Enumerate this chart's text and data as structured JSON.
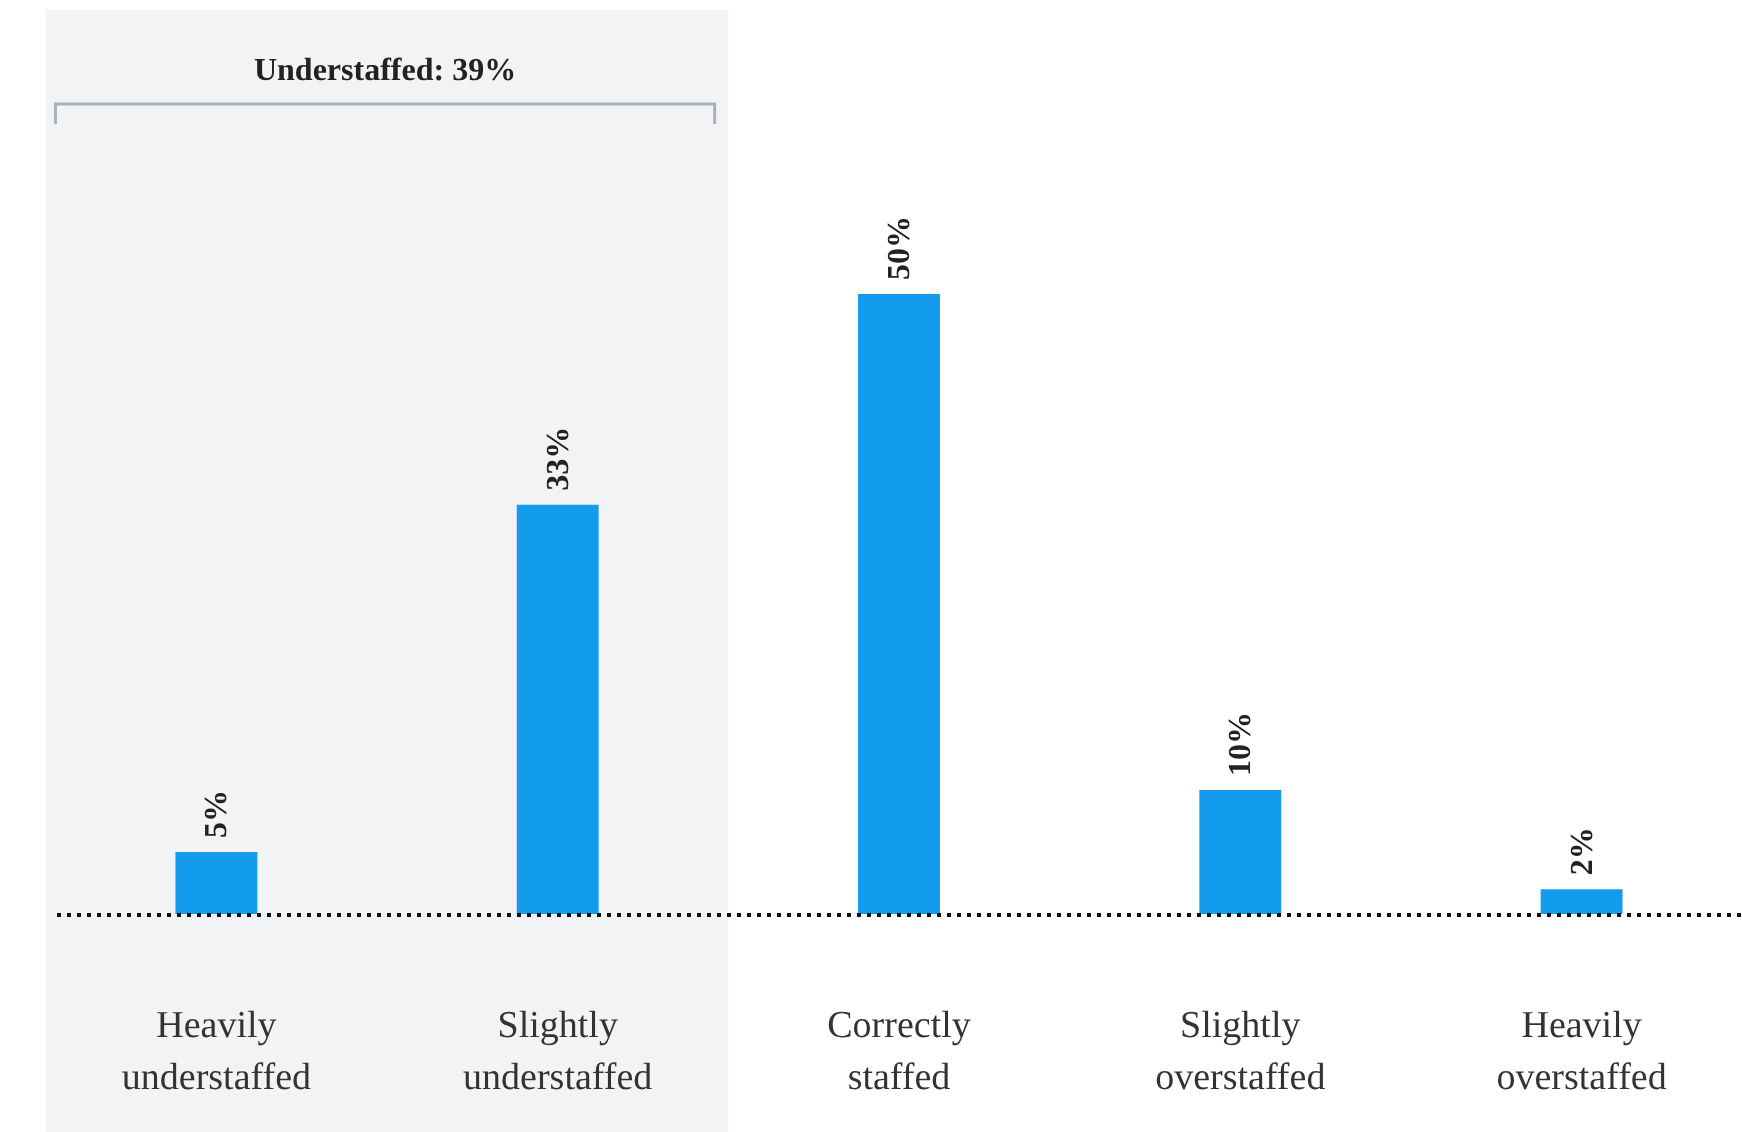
{
  "chart_data": {
    "type": "bar",
    "categories": [
      "Heavily understaffed",
      "Slightly understaffed",
      "Correctly staffed",
      "Slightly overstaffed",
      "Heavily overstaffed"
    ],
    "values": [
      5,
      33,
      50,
      10,
      2
    ],
    "color": "#139ced",
    "value_labels": [
      "5%",
      "33%",
      "50%",
      "10%",
      "2%"
    ],
    "bands": [
      {
        "axis": "x",
        "from": "Heavily understaffed",
        "to": "Slightly understaffed",
        "label": "Understaffed: 39%",
        "color": "#f2f3f5"
      }
    ],
    "grid": false
  }
}
